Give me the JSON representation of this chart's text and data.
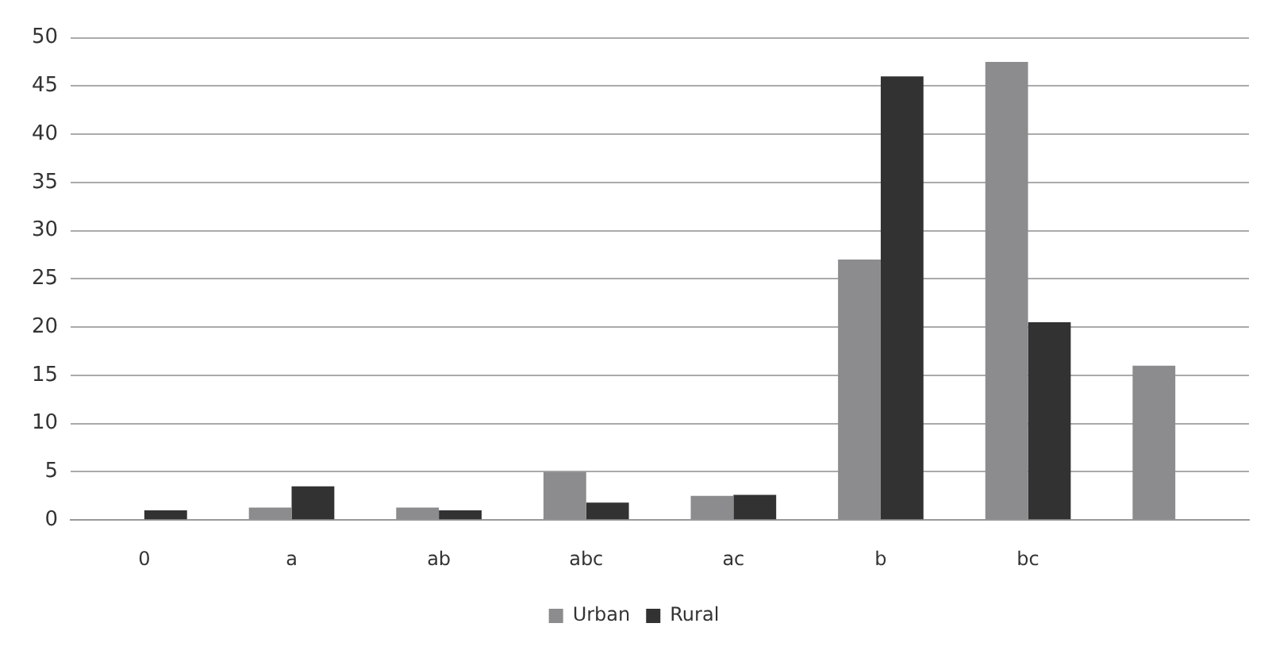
{
  "chart_data": {
    "type": "bar",
    "categories": [
      "0",
      "a",
      "ab",
      "abc",
      "ac",
      "b",
      "bc",
      null
    ],
    "series": [
      {
        "name": "Urban",
        "color": "#8c8c8e",
        "values": [
          0,
          1.3,
          1.3,
          5,
          2.5,
          27,
          47.5,
          16
        ]
      },
      {
        "name": "Rural",
        "color": "#333233",
        "values": [
          1,
          3.5,
          1,
          1.8,
          2.6,
          46,
          20.5,
          null
        ]
      }
    ],
    "ylim": [
      0,
      50
    ],
    "yticks": [
      0,
      5,
      10,
      15,
      20,
      25,
      30,
      35,
      40,
      45,
      50
    ],
    "grid": "y",
    "legend": "bottom"
  }
}
